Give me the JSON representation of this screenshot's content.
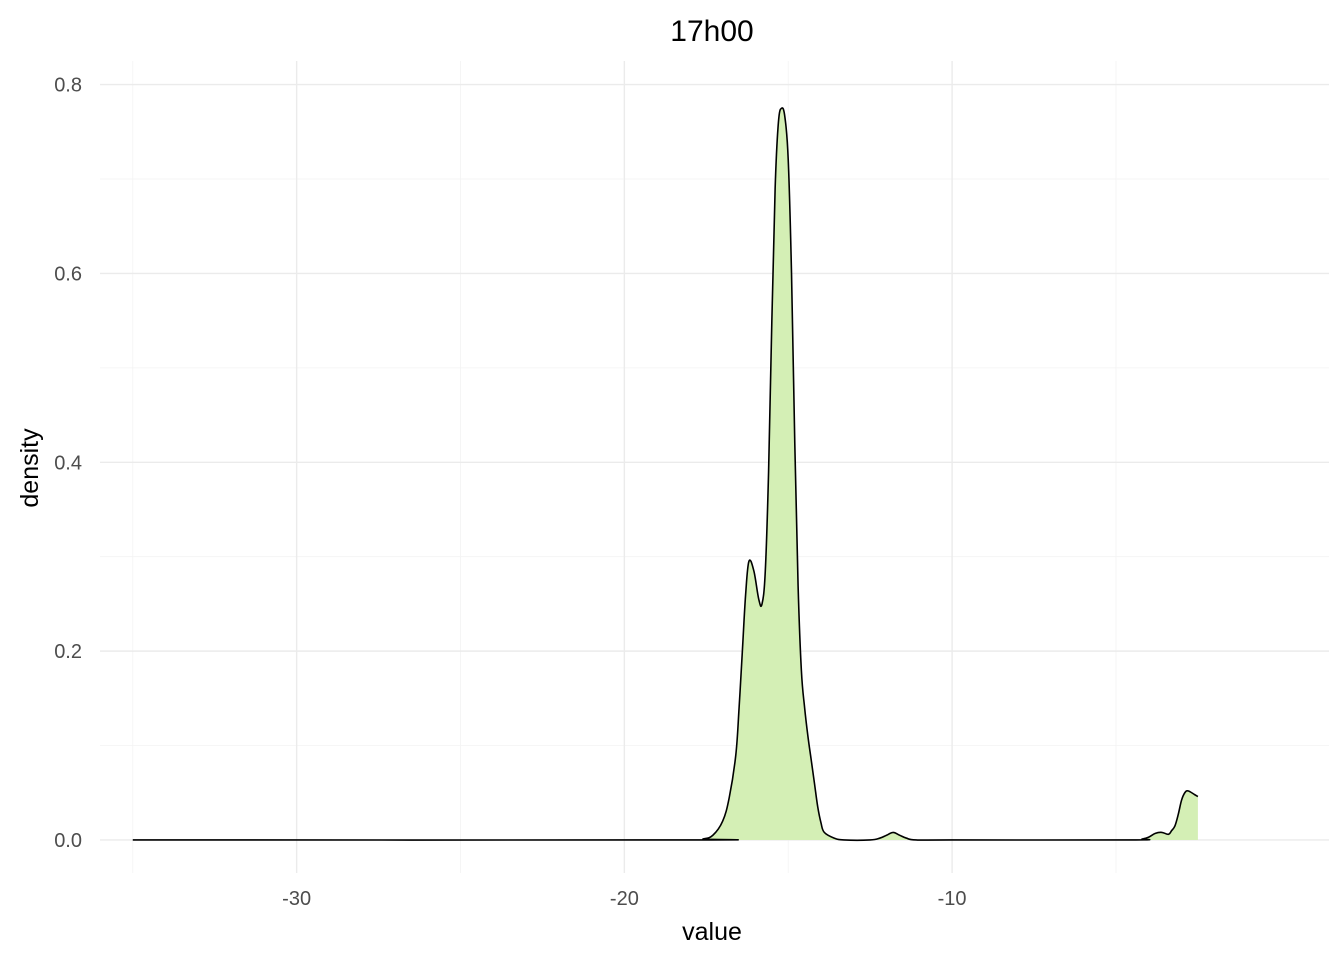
{
  "chart_data": {
    "type": "area",
    "title": "17h00",
    "xlabel": "value",
    "ylabel": "density",
    "xlim": [
      -36,
      1.5
    ],
    "ylim": [
      -0.035,
      0.825
    ],
    "x_ticks": [
      -30,
      -20,
      -10
    ],
    "x_tick_labels": [
      "-30",
      "-20",
      "-10"
    ],
    "y_ticks": [
      0.0,
      0.2,
      0.4,
      0.6,
      0.8
    ],
    "y_tick_labels": [
      "0.0",
      "0.2",
      "0.4",
      "0.6",
      "0.8"
    ],
    "x_minor_ticks": [
      -35,
      -25,
      -15,
      -5
    ],
    "y_minor_ticks": [
      0.1,
      0.3,
      0.5,
      0.7
    ],
    "grid": true,
    "legend": "none",
    "fill_color": "#d4efb5",
    "line_color": "#000000",
    "series": [
      {
        "x": [
          -35,
          -18,
          -17.6,
          -17.3,
          -17.0,
          -16.8,
          -16.6,
          -16.5,
          -16.4,
          -16.3,
          -16.2,
          -16.05,
          -15.9,
          -15.8,
          -15.7,
          -15.6,
          -15.5,
          -15.4,
          -15.3,
          -15.2,
          -15.1,
          -15.0,
          -14.9,
          -14.8,
          -14.7,
          -14.6,
          -14.5,
          -14.4,
          -14.3,
          -14.2,
          -14.1,
          -14.0,
          -13.9,
          -13.6,
          -13.3,
          -12.5,
          -12.2,
          -12.0,
          -11.8,
          -11.6,
          -11.4,
          -11.1,
          -10,
          -4.5,
          -4.2,
          -4.0,
          -3.8,
          -3.6,
          -3.4,
          -3.3,
          -3.2,
          -3.1,
          -3.0,
          -2.9,
          -2.8,
          -2.6,
          -2.5
        ],
        "y": [
          0,
          0,
          0.001,
          0.005,
          0.02,
          0.045,
          0.09,
          0.14,
          0.2,
          0.26,
          0.295,
          0.285,
          0.255,
          0.25,
          0.285,
          0.39,
          0.55,
          0.69,
          0.76,
          0.775,
          0.765,
          0.72,
          0.6,
          0.42,
          0.27,
          0.18,
          0.14,
          0.11,
          0.085,
          0.06,
          0.035,
          0.018,
          0.008,
          0.002,
          0,
          0,
          0.002,
          0.005,
          0.008,
          0.005,
          0.002,
          0,
          0,
          0,
          0.001,
          0.003,
          0.007,
          0.008,
          0.006,
          0.01,
          0.015,
          0.027,
          0.042,
          0.05,
          0.052,
          0.048,
          0.046
        ]
      }
    ]
  }
}
